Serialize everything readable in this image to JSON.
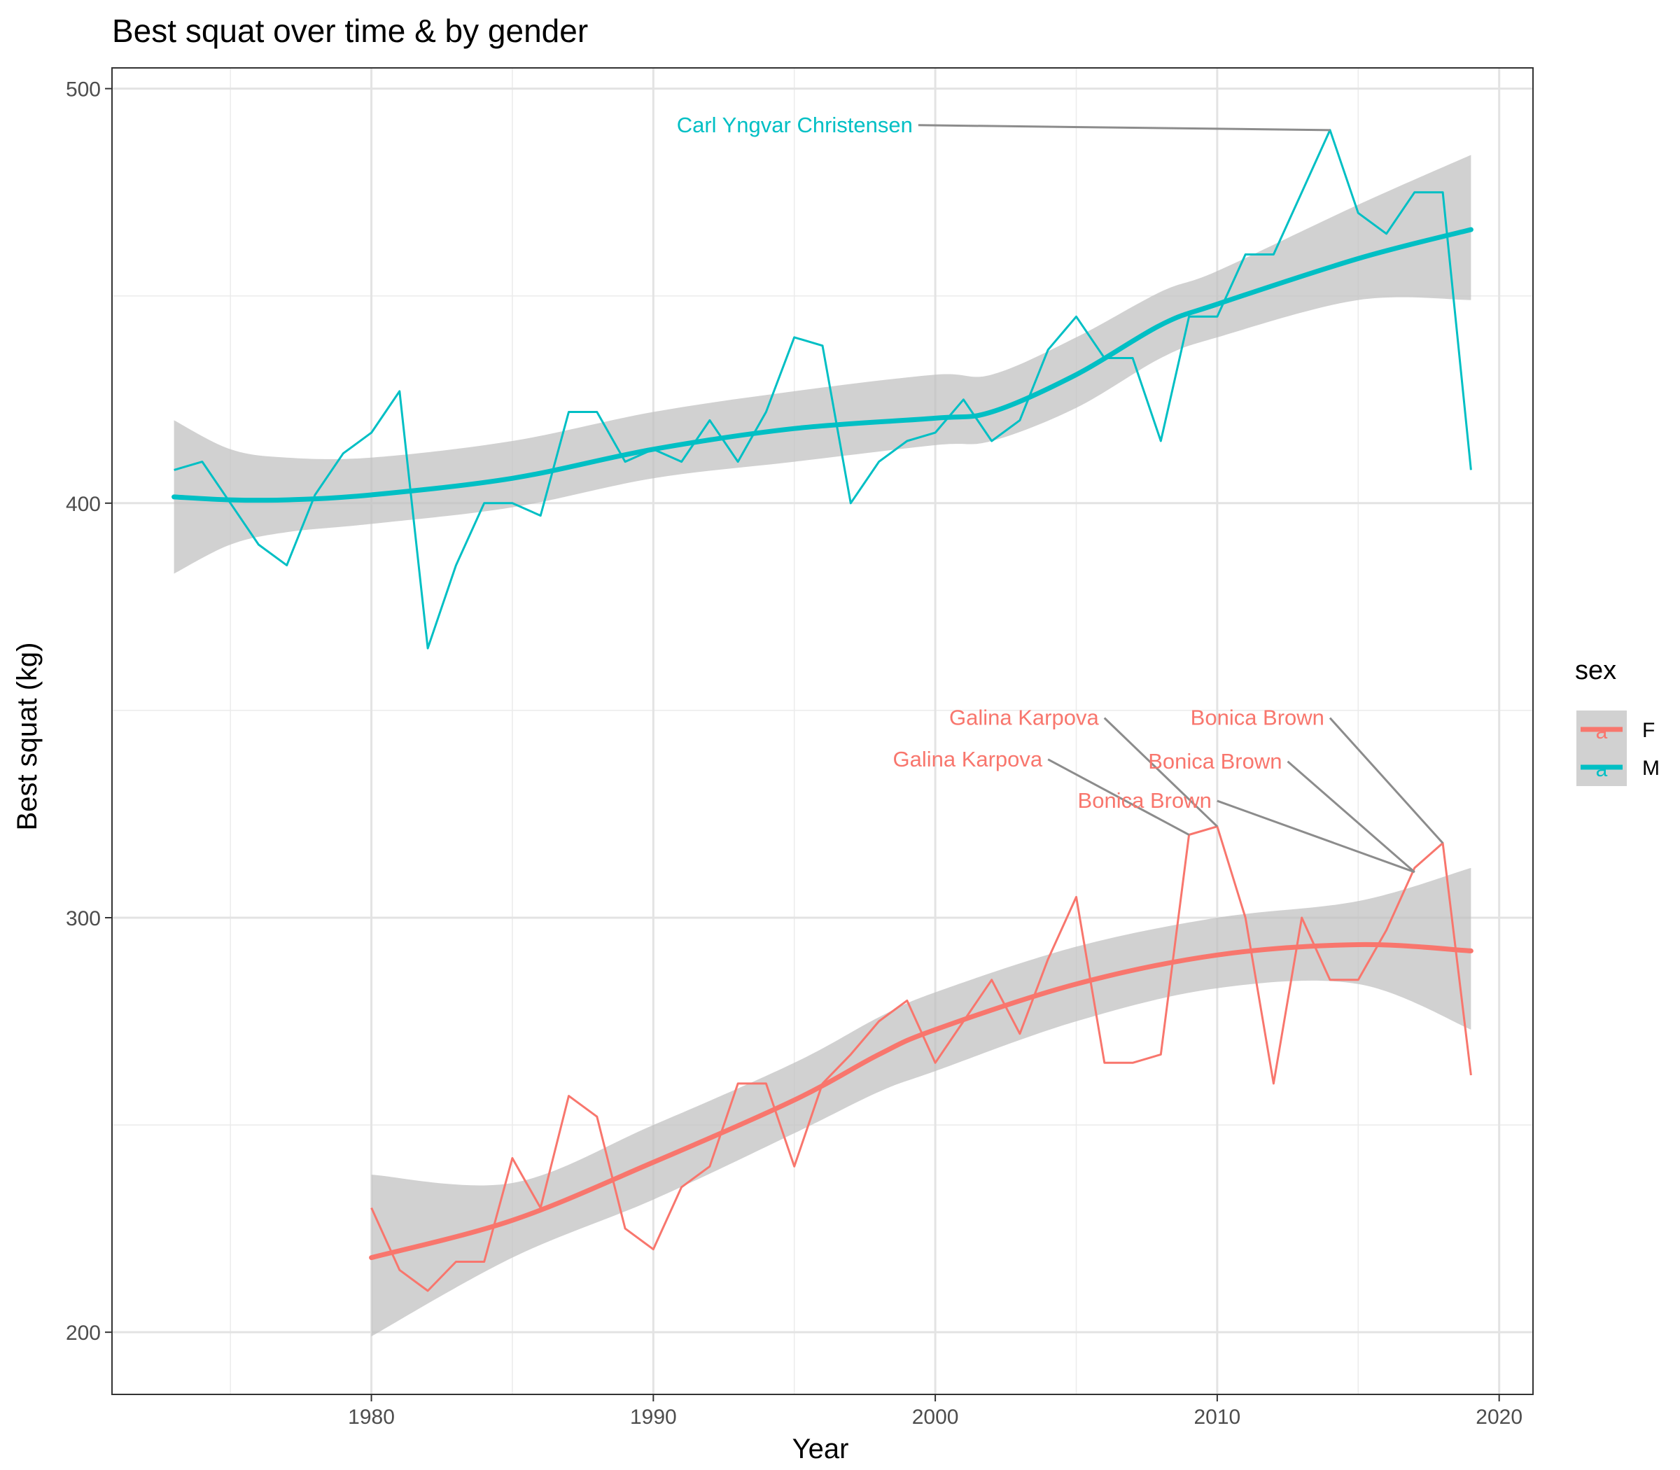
{
  "chart_data": {
    "type": "line",
    "title": "Best squat over time & by gender",
    "xlabel": "Year",
    "ylabel": "Best squat (kg)",
    "xlim": [
      1970.8,
      2021.2
    ],
    "ylim": [
      185,
      505
    ],
    "x_ticks": [
      1980,
      1990,
      2000,
      2010,
      2020
    ],
    "y_ticks": [
      200,
      300,
      400,
      500
    ],
    "x_tick_labels": [
      "1980",
      "1990",
      "2000",
      "2010",
      "2020"
    ],
    "y_tick_labels": [
      "200",
      "300",
      "400",
      "500"
    ],
    "grid": true,
    "legend": {
      "title": "sex",
      "position": "right",
      "entries": [
        "F",
        "M"
      ],
      "key_glyph": "a"
    },
    "colors": {
      "F": "#f8766d",
      "M": "#00bfc4",
      "ribbon": "#bfbfbf",
      "annotation_line": "#8c8c8c"
    },
    "series": [
      {
        "name": "M",
        "x": [
          1973,
          1974,
          1975,
          1976,
          1977,
          1978,
          1979,
          1980,
          1981,
          1982,
          1983,
          1984,
          1985,
          1986,
          1987,
          1988,
          1989,
          1990,
          1991,
          1992,
          1993,
          1994,
          1995,
          1996,
          1997,
          1998,
          1999,
          2000,
          2001,
          2002,
          2003,
          2004,
          2005,
          2006,
          2007,
          2008,
          2009,
          2010,
          2011,
          2012,
          2013,
          2014,
          2015,
          2016,
          2017,
          2018,
          2019
        ],
        "values": [
          408,
          410,
          400,
          390,
          385,
          402,
          412,
          417,
          427,
          365,
          385,
          400,
          400,
          397,
          422,
          422,
          410,
          413,
          410,
          420,
          410,
          422,
          440,
          438,
          400,
          410,
          415,
          417,
          425,
          415,
          420,
          437,
          445,
          435,
          435,
          415,
          445,
          445,
          460,
          460,
          475,
          490,
          470,
          465,
          475,
          475,
          408
        ]
      },
      {
        "name": "F",
        "x": [
          1980,
          1981,
          1982,
          1983,
          1984,
          1985,
          1986,
          1987,
          1988,
          1989,
          1990,
          1991,
          1992,
          1993,
          1994,
          1995,
          1996,
          1997,
          1998,
          1999,
          2000,
          2001,
          2002,
          2003,
          2004,
          2005,
          2006,
          2007,
          2008,
          2009,
          2010,
          2011,
          2012,
          2013,
          2014,
          2015,
          2016,
          2017,
          2018,
          2019
        ],
        "values": [
          230,
          215,
          210,
          217,
          217,
          242,
          230,
          257,
          252,
          225,
          220,
          235,
          240,
          260,
          260,
          240,
          260,
          267,
          275,
          280,
          265,
          275,
          285,
          272,
          290,
          305,
          265,
          265,
          267,
          320,
          322,
          300,
          260,
          300,
          285,
          285,
          297,
          312,
          318,
          262
        ]
      }
    ],
    "smooth": [
      {
        "name": "M",
        "x": [
          1973,
          1975,
          1977,
          1980,
          1985,
          1990,
          1995,
          2000,
          2002,
          2005,
          2008,
          2010,
          2015,
          2019
        ],
        "values": [
          401.5,
          400.8,
          400.8,
          402,
          406,
          413,
          418,
          420.5,
          422,
          431,
          443,
          448,
          459,
          466
        ],
        "lower": [
          383,
          390,
          393,
          395,
          399,
          406,
          410,
          414,
          415,
          423,
          435,
          440,
          449,
          449
        ],
        "upper": [
          420,
          413,
          411,
          411,
          415,
          422,
          427,
          431,
          431,
          440,
          451,
          456,
          472,
          484
        ]
      },
      {
        "name": "F",
        "x": [
          1980,
          1985,
          1990,
          1995,
          1998,
          2000,
          2005,
          2010,
          2015,
          2019
        ],
        "values": [
          218,
          227,
          241,
          256,
          267,
          273,
          284,
          291,
          293.5,
          292
        ],
        "lower": [
          199,
          218,
          232,
          248,
          258,
          263,
          275,
          283,
          284,
          273
        ],
        "upper": [
          238,
          236,
          250,
          265,
          276,
          282,
          293,
          300,
          304,
          312
        ]
      }
    ],
    "annotations": [
      {
        "text": "Carl Yngvar Christensen",
        "series": "M",
        "label_x": 1999.2,
        "label_y": 489.5,
        "point_x": 2014,
        "point_y": 490
      },
      {
        "text": "Galina Karpova",
        "series": "F",
        "label_x": 2005.8,
        "label_y": 346.5,
        "point_x": 2010,
        "point_y": 322
      },
      {
        "text": "Bonica Brown",
        "series": "F",
        "label_x": 2013.8,
        "label_y": 346.5,
        "point_x": 2018,
        "point_y": 318
      },
      {
        "text": "Galina Karpova",
        "series": "F",
        "label_x": 2003.8,
        "label_y": 336.5,
        "point_x": 2009,
        "point_y": 320
      },
      {
        "text": "Bonica Brown",
        "series": "F",
        "label_x": 2012.3,
        "label_y": 336,
        "point_x": 2017,
        "point_y": 311
      },
      {
        "text": "Bonica Brown",
        "series": "F",
        "label_x": 2009.8,
        "label_y": 326.5,
        "point_x": 2017,
        "point_y": 311
      }
    ]
  }
}
